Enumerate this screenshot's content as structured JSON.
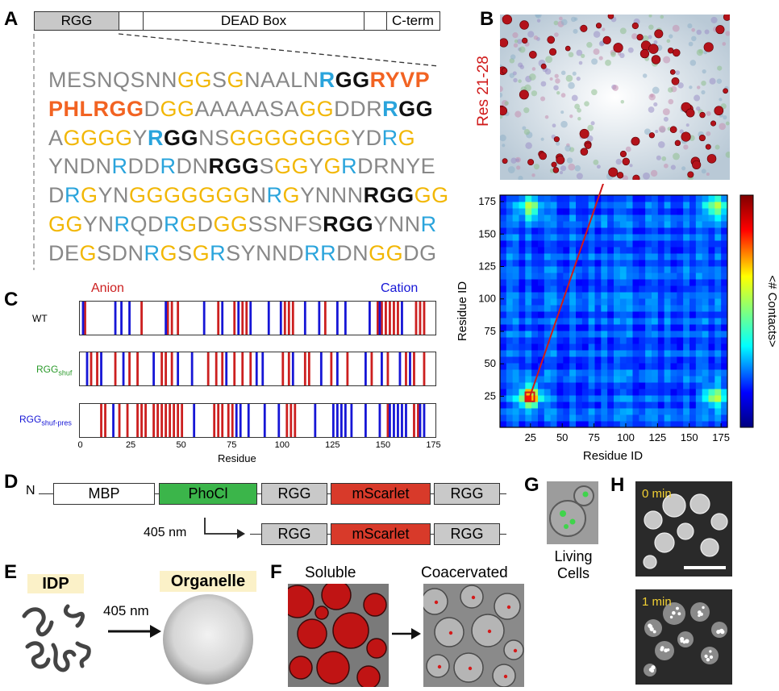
{
  "panels": {
    "a": "A",
    "b": "B",
    "c": "C",
    "d": "D",
    "e": "E",
    "f": "F",
    "g": "G",
    "h": "H"
  },
  "panel_a": {
    "domains": [
      "RGG",
      "DEAD Box",
      "C-term"
    ],
    "sequence_lines": [
      [
        [
          "g",
          "MESNQSNN"
        ],
        [
          "y",
          "GG"
        ],
        [
          "g",
          "S"
        ],
        [
          "y",
          "G"
        ],
        [
          "g",
          "NAALN"
        ],
        [
          "cb",
          "R"
        ],
        [
          "kb",
          "GG"
        ],
        [
          "o",
          "RYVP"
        ]
      ],
      [
        [
          "o",
          "PHLRGG"
        ],
        [
          "g",
          "D"
        ],
        [
          "y",
          "GG"
        ],
        [
          "g",
          "AAAAASA"
        ],
        [
          "y",
          "GG"
        ],
        [
          "g",
          "DDR"
        ],
        [
          "cb",
          "R"
        ],
        [
          "kb",
          "GG"
        ]
      ],
      [
        [
          "g",
          "A"
        ],
        [
          "y",
          "GGGG"
        ],
        [
          "g",
          "Y"
        ],
        [
          "cb",
          "R"
        ],
        [
          "kb",
          "GG"
        ],
        [
          "g",
          "N"
        ],
        [
          "g",
          "S"
        ],
        [
          "y",
          "GGGGGGG"
        ],
        [
          "g",
          "YD"
        ],
        [
          "c",
          "R"
        ],
        [
          "y",
          "G"
        ]
      ],
      [
        [
          "g",
          "YNDN"
        ],
        [
          "c",
          "R"
        ],
        [
          "g",
          "DD"
        ],
        [
          "c",
          "R"
        ],
        [
          "g",
          "DN"
        ],
        [
          "kb",
          "RGG"
        ],
        [
          "g",
          "S"
        ],
        [
          "y",
          "GG"
        ],
        [
          "g",
          "Y"
        ],
        [
          "y",
          "G"
        ],
        [
          "c",
          "R"
        ],
        [
          "g",
          "DRNYE"
        ]
      ],
      [
        [
          "g",
          "D"
        ],
        [
          "c",
          "R"
        ],
        [
          "y",
          "G"
        ],
        [
          "g",
          "YN"
        ],
        [
          "y",
          "GGGGGGG"
        ],
        [
          "g",
          "N"
        ],
        [
          "c",
          "R"
        ],
        [
          "y",
          "G"
        ],
        [
          "g",
          "YNNN"
        ],
        [
          "kb",
          "RGG"
        ],
        [
          "y",
          "GG"
        ]
      ],
      [
        [
          "y",
          "GG"
        ],
        [
          "g",
          "YN"
        ],
        [
          "c",
          "R"
        ],
        [
          "g",
          "QD"
        ],
        [
          "c",
          "R"
        ],
        [
          "y",
          "G"
        ],
        [
          "g",
          "D"
        ],
        [
          "y",
          "GG"
        ],
        [
          "g",
          "SSNFS"
        ],
        [
          "kb",
          "RGG"
        ],
        [
          "g",
          "YNN"
        ],
        [
          "c",
          "R"
        ]
      ],
      [
        [
          "g",
          "DE"
        ],
        [
          "y",
          "G"
        ],
        [
          "g",
          "SDN"
        ],
        [
          "c",
          "R"
        ],
        [
          "y",
          "G"
        ],
        [
          "g",
          "S"
        ],
        [
          "y",
          "G"
        ],
        [
          "c",
          "R"
        ],
        [
          "g",
          "SYNND"
        ],
        [
          "c",
          "RR"
        ],
        [
          "g",
          "DN"
        ],
        [
          "y",
          "GG"
        ],
        [
          "g",
          "DG"
        ]
      ]
    ]
  },
  "panel_b": {
    "snapshot_label": "Res 21-28",
    "xlabel": "Residue ID",
    "ylabel": "Residue ID",
    "colorbar_label": "<# Contacts>",
    "ticks": [
      "25",
      "50",
      "75",
      "100",
      "125",
      "150",
      "175"
    ]
  },
  "panel_c": {
    "anion_label": "Anion",
    "cation_label": "Cation",
    "rows": [
      {
        "label": "WT",
        "sub": ""
      },
      {
        "label": "RGG",
        "sub": "shuf"
      },
      {
        "label": "RGG",
        "sub": "shuf-pres"
      }
    ],
    "xlabel": "Residue",
    "ticks": [
      "0",
      "25",
      "50",
      "75",
      "100",
      "125",
      "150",
      "175"
    ],
    "colors": {
      "anion": "#cc1f1f",
      "cation": "#1616d6"
    }
  },
  "panel_d": {
    "n_term": "N",
    "row1": [
      "MBP",
      "PhoCl",
      "RGG",
      "mScarlet",
      "RGG"
    ],
    "wavelength": "405 nm",
    "row2": [
      "RGG",
      "mScarlet",
      "RGG"
    ],
    "colors": {
      "phocl": "#3bb54a",
      "mscarlet": "#d83a2a",
      "rgg": "#c9c9c9",
      "mbp": "#ffffff"
    }
  },
  "panel_e": {
    "idp": "IDP",
    "organelle": "Organelle",
    "wavelength": "405 nm"
  },
  "panel_f": {
    "soluble": "Soluble",
    "coacervated": "Coacervated"
  },
  "panel_g": {
    "caption_line1": "Living",
    "caption_line2": "Cells"
  },
  "panel_h": {
    "t0": "0 min",
    "t1": "1 min"
  },
  "chart_data": [
    {
      "type": "heatmap",
      "title": "",
      "xlabel": "Residue ID",
      "ylabel": "Residue ID",
      "xlim": [
        1,
        180
      ],
      "ylim": [
        1,
        180
      ],
      "x_ticks": [
        25,
        50,
        75,
        100,
        125,
        150,
        175
      ],
      "y_ticks": [
        25,
        50,
        75,
        100,
        125,
        150,
        175
      ],
      "colorbar_label": "<# Contacts>",
      "colormap": "jet",
      "hotspots": [
        {
          "x": 24,
          "y": 24,
          "level": "high"
        },
        {
          "x": 24,
          "y": 171,
          "level": "medium"
        },
        {
          "x": 171,
          "y": 24,
          "level": "medium"
        },
        {
          "x": 171,
          "y": 171,
          "level": "medium"
        }
      ],
      "highlight_region": {
        "x": [
          21,
          28
        ],
        "y": [
          21,
          28
        ]
      }
    },
    {
      "type": "bar",
      "title": "",
      "xlabel": "Residue",
      "xlim": [
        0,
        175
      ],
      "x_ticks": [
        0,
        25,
        50,
        75,
        100,
        125,
        150,
        175
      ],
      "series": [
        {
          "name": "WT",
          "anion": [
            2,
            30,
            43,
            45,
            48,
            68,
            76,
            80,
            82,
            101,
            103,
            105,
            121,
            147,
            149,
            151,
            153,
            155,
            157,
            166,
            168,
            170
          ],
          "cation": [
            1,
            17,
            20,
            24,
            42,
            61,
            70,
            78,
            84,
            93,
            99,
            111,
            118,
            127,
            131,
            143,
            148,
            159
          ]
        },
        {
          "name": "RGGshuf",
          "anion": [
            5,
            8,
            17,
            24,
            28,
            40,
            42,
            45,
            63,
            67,
            70,
            76,
            80,
            84,
            100,
            103,
            111,
            113,
            124,
            132,
            144,
            152,
            161,
            165,
            170
          ],
          "cation": [
            3,
            10,
            21,
            36,
            48,
            55,
            72,
            87,
            90,
            105,
            119,
            127,
            141,
            149,
            158,
            163
          ]
        },
        {
          "name": "RGGshuf-pres",
          "anion": [
            10,
            12,
            19,
            23,
            28,
            30,
            32,
            36,
            38,
            40,
            42,
            44,
            46,
            48,
            50,
            66,
            68,
            70,
            73,
            75,
            102,
            104,
            106,
            152,
            165,
            167
          ],
          "cation": [
            16,
            56,
            77,
            79,
            83,
            91,
            98,
            116,
            125,
            127,
            129,
            131,
            134,
            141,
            148,
            153,
            155,
            157,
            159,
            161,
            168,
            170
          ]
        }
      ]
    }
  ]
}
